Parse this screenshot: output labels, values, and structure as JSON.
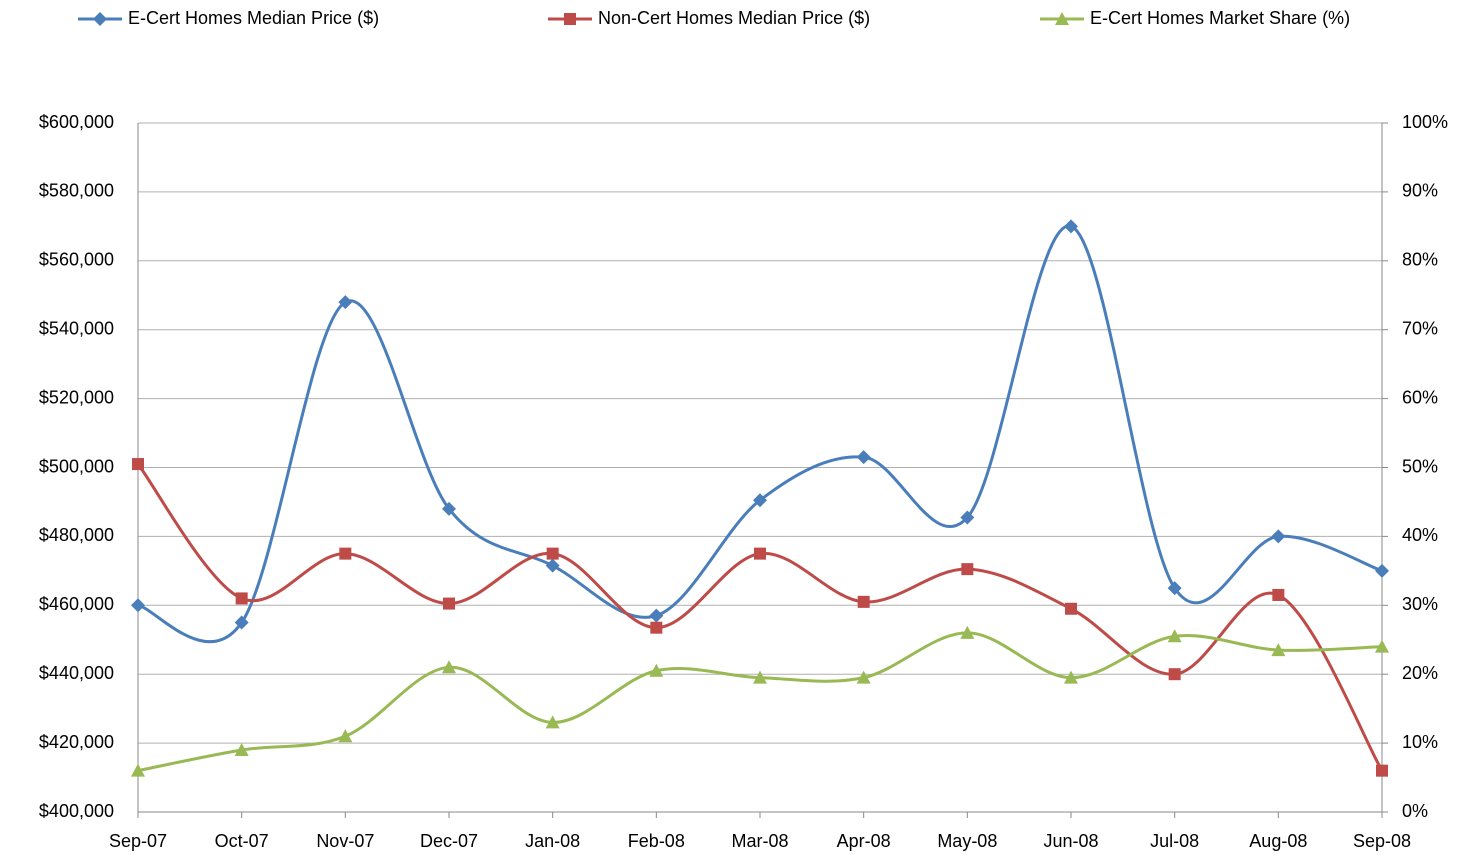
{
  "chart_data": {
    "type": "line",
    "categories": [
      "Sep-07",
      "Oct-07",
      "Nov-07",
      "Dec-07",
      "Jan-08",
      "Feb-08",
      "Mar-08",
      "Apr-08",
      "May-08",
      "Jun-08",
      "Jul-08",
      "Aug-08",
      "Sep-08"
    ],
    "series": [
      {
        "name": "E-Cert Homes Median Price ($)",
        "color": "#4a7ebb",
        "marker": "diamond",
        "values": [
          460000,
          455000,
          548000,
          488000,
          471500,
          457000,
          490500,
          503000,
          485500,
          570000,
          465000,
          480000,
          470000
        ]
      },
      {
        "name": "Non-Cert Homes Median Price ($)",
        "color": "#be4b48",
        "marker": "square",
        "values": [
          501000,
          462000,
          475000,
          460500,
          475000,
          453500,
          475000,
          461000,
          470500,
          459000,
          440000,
          463000,
          412000
        ]
      },
      {
        "name": "E-Cert Homes Market Share (%)",
        "color": "#98b954",
        "marker": "triangle",
        "axis": "y2",
        "values": [
          6,
          9,
          11,
          21,
          13,
          20.5,
          19.5,
          19.5,
          26,
          19.5,
          25.5,
          23.5,
          24
        ]
      }
    ],
    "ylim": [
      400000,
      600000
    ],
    "yticks": [
      {
        "value": 400000,
        "label": "$400,000"
      },
      {
        "value": 420000,
        "label": "$420,000"
      },
      {
        "value": 440000,
        "label": "$440,000"
      },
      {
        "value": 460000,
        "label": "$460,000"
      },
      {
        "value": 480000,
        "label": "$480,000"
      },
      {
        "value": 500000,
        "label": "$500,000"
      },
      {
        "value": 520000,
        "label": "$520,000"
      },
      {
        "value": 540000,
        "label": "$540,000"
      },
      {
        "value": 560000,
        "label": "$560,000"
      },
      {
        "value": 580000,
        "label": "$580,000"
      },
      {
        "value": 600000,
        "label": "$600,000"
      }
    ],
    "y2lim": [
      0,
      100
    ],
    "y2ticks": [
      {
        "value": 0,
        "label": "0%"
      },
      {
        "value": 10,
        "label": "10%"
      },
      {
        "value": 20,
        "label": "20%"
      },
      {
        "value": 30,
        "label": "30%"
      },
      {
        "value": 40,
        "label": "40%"
      },
      {
        "value": 50,
        "label": "50%"
      },
      {
        "value": 60,
        "label": "60%"
      },
      {
        "value": 70,
        "label": "70%"
      },
      {
        "value": 80,
        "label": "80%"
      },
      {
        "value": 90,
        "label": "90%"
      },
      {
        "value": 100,
        "label": "100%"
      }
    ],
    "grid": true,
    "smooth": true,
    "legend": "top"
  }
}
